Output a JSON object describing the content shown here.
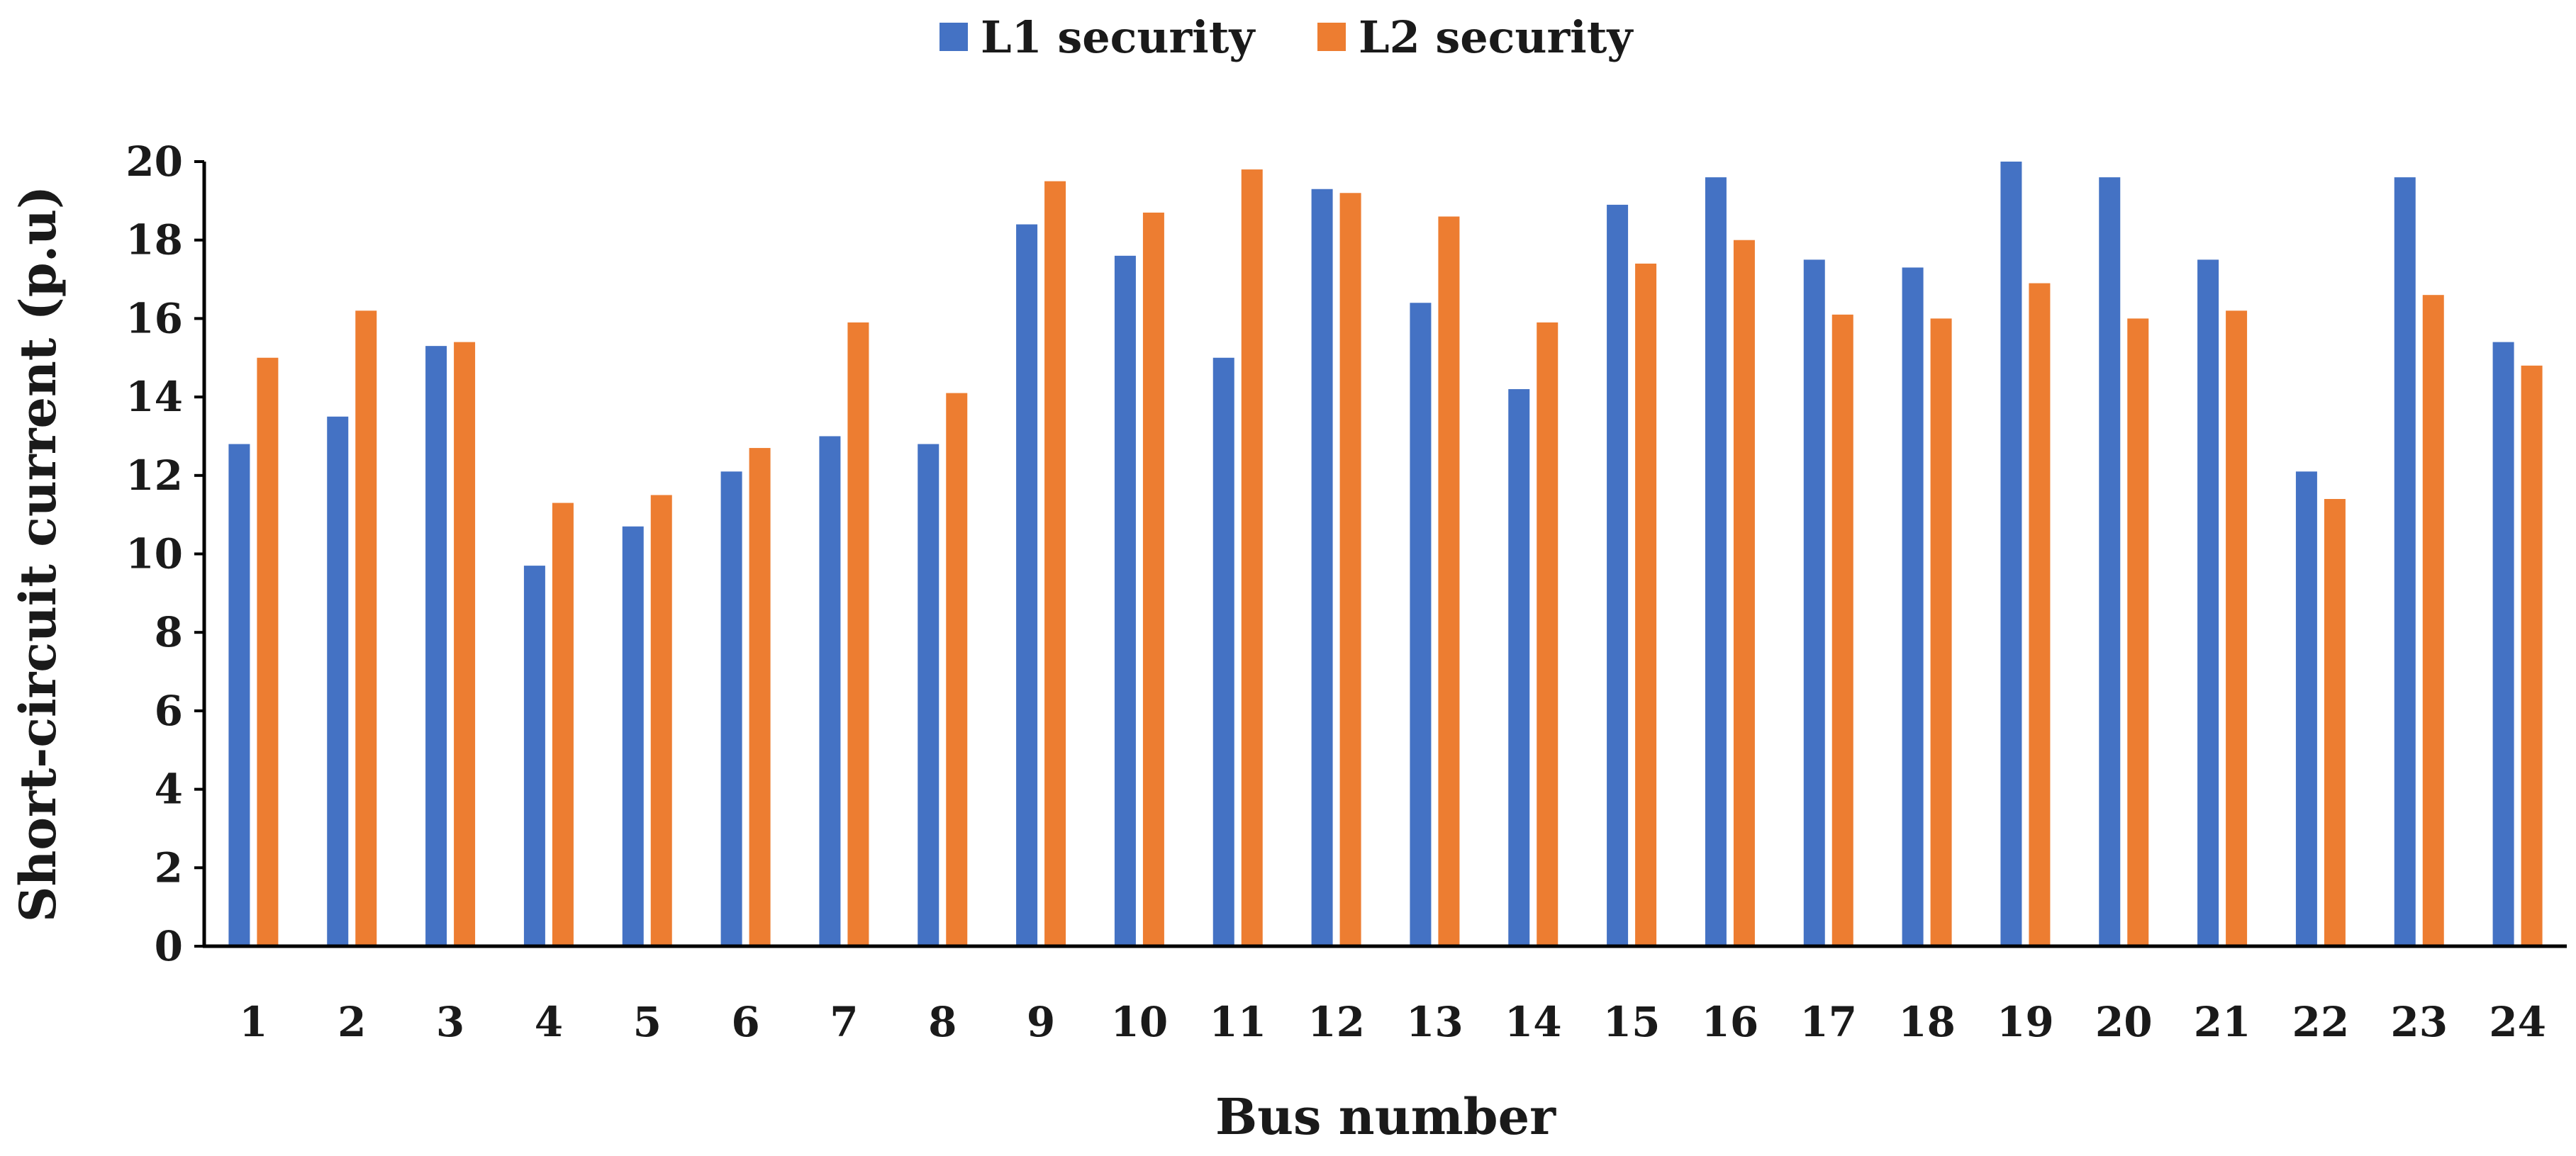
{
  "chart_data": {
    "type": "bar",
    "title": "",
    "xlabel": "Bus number",
    "ylabel": "Short-circuit current (p.u)",
    "ylim": [
      0,
      20
    ],
    "yticks": [
      0,
      2,
      4,
      6,
      8,
      10,
      12,
      14,
      16,
      18,
      20
    ],
    "grid": false,
    "legend_position": "top-center",
    "categories": [
      "1",
      "2",
      "3",
      "4",
      "5",
      "6",
      "7",
      "8",
      "9",
      "10",
      "11",
      "12",
      "13",
      "14",
      "15",
      "16",
      "17",
      "18",
      "19",
      "20",
      "21",
      "22",
      "23",
      "24"
    ],
    "series": [
      {
        "name": "L1 security",
        "color": "#4472C4",
        "values": [
          12.8,
          13.5,
          15.3,
          9.7,
          10.7,
          12.1,
          13.0,
          12.8,
          18.4,
          17.6,
          15.0,
          19.3,
          16.4,
          14.2,
          18.9,
          19.6,
          17.5,
          17.3,
          20.0,
          19.6,
          17.5,
          12.1,
          19.6,
          15.4
        ]
      },
      {
        "name": "L2 security",
        "color": "#ED7D31",
        "values": [
          15.0,
          16.2,
          15.4,
          11.3,
          11.5,
          12.7,
          15.9,
          14.1,
          19.5,
          18.7,
          19.8,
          19.2,
          18.6,
          15.9,
          17.4,
          18.0,
          16.1,
          16.0,
          16.9,
          16.0,
          16.2,
          11.4,
          16.6,
          14.8
        ]
      }
    ]
  }
}
